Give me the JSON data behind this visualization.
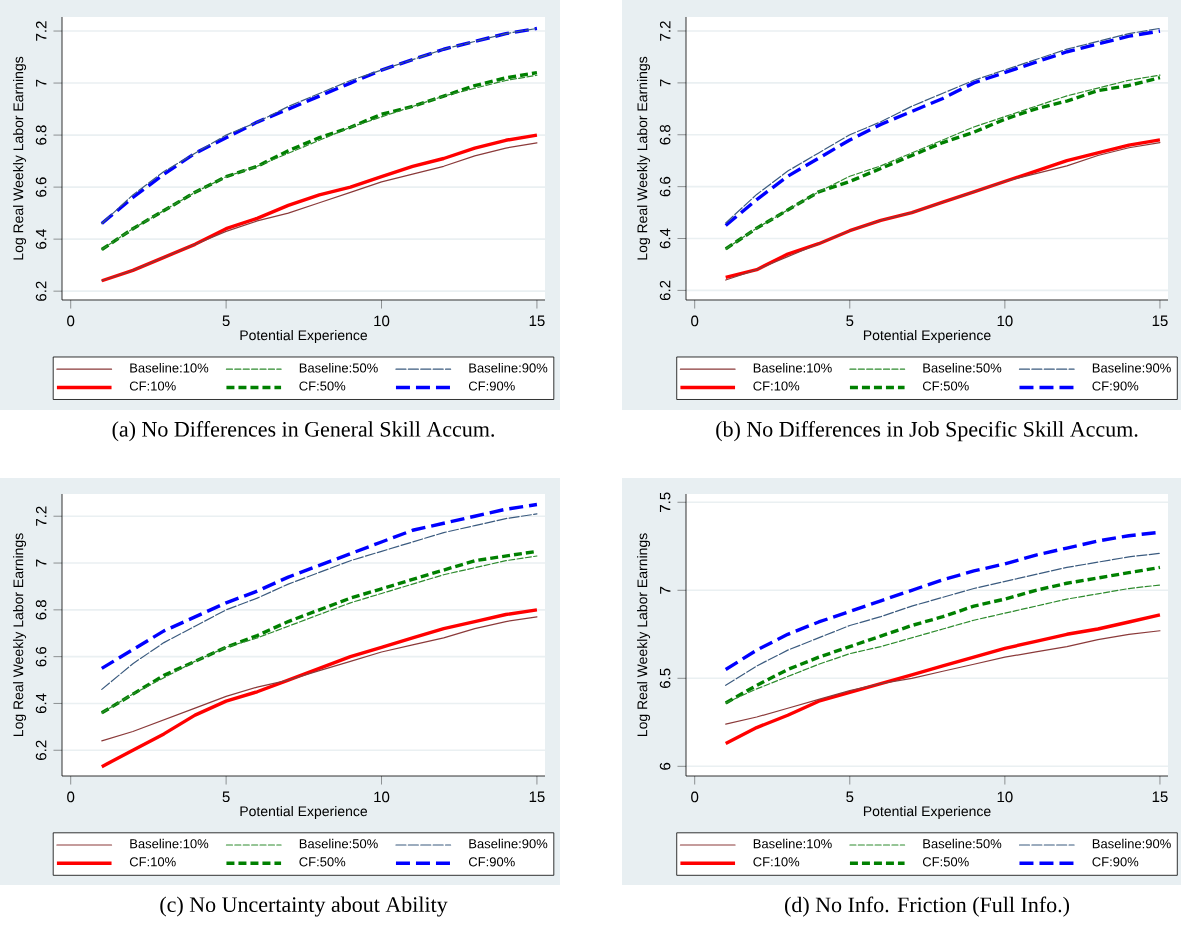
{
  "chart_data": [
    {
      "type": "line",
      "title": "(a) No Differences in General Skill Accum.",
      "xlabel": "Potential Experience",
      "ylabel": "Log Real Weekly Labor Earnings",
      "x": [
        1,
        2,
        3,
        4,
        5,
        6,
        7,
        8,
        9,
        10,
        11,
        12,
        13,
        14,
        15
      ],
      "xlim": [
        -0.28,
        15.26
      ],
      "xticks": [
        0,
        5,
        10,
        15
      ],
      "ylim": [
        6.166,
        7.254
      ],
      "yticks": [
        6.2,
        6.4,
        6.6,
        6.8,
        7,
        7.2
      ],
      "grid": "y",
      "legend": "bottom",
      "marker": "none",
      "series": [
        {
          "name": "Baseline:10%",
          "color": "#8b3a3a",
          "line_style": "solid",
          "values": [
            6.24,
            6.28,
            6.33,
            6.38,
            6.43,
            6.47,
            6.5,
            6.54,
            6.58,
            6.62,
            6.65,
            6.68,
            6.72,
            6.75,
            6.77
          ]
        },
        {
          "name": "Baseline:50%",
          "color": "#2e8b2e",
          "line_style": "dashed",
          "values": [
            6.36,
            6.44,
            6.51,
            6.58,
            6.64,
            6.68,
            6.73,
            6.78,
            6.83,
            6.87,
            6.91,
            6.95,
            6.98,
            7.01,
            7.03
          ]
        },
        {
          "name": "Baseline:90%",
          "color": "#3b5b7f",
          "line_style": "dashed",
          "values": [
            6.46,
            6.57,
            6.66,
            6.73,
            6.8,
            6.85,
            6.91,
            6.96,
            7.01,
            7.05,
            7.09,
            7.13,
            7.16,
            7.19,
            7.21
          ]
        },
        {
          "name": "CF:10%",
          "color": "#ff0000",
          "line_style": "solid",
          "values": [
            6.24,
            6.28,
            6.33,
            6.38,
            6.44,
            6.48,
            6.53,
            6.57,
            6.6,
            6.64,
            6.68,
            6.71,
            6.75,
            6.78,
            6.8
          ]
        },
        {
          "name": "CF:50%",
          "color": "#008000",
          "line_style": "dashed",
          "values": [
            6.36,
            6.44,
            6.51,
            6.58,
            6.64,
            6.68,
            6.74,
            6.79,
            6.83,
            6.88,
            6.91,
            6.95,
            6.99,
            7.02,
            7.04
          ]
        },
        {
          "name": "CF:90%",
          "color": "#0000ff",
          "line_style": "dashed",
          "values": [
            6.46,
            6.56,
            6.65,
            6.73,
            6.79,
            6.85,
            6.9,
            6.95,
            7.0,
            7.05,
            7.09,
            7.13,
            7.16,
            7.19,
            7.21
          ]
        }
      ]
    },
    {
      "type": "line",
      "title": "(b) No Differences in Job Specific Skill Accum.",
      "xlabel": "Potential Experience",
      "ylabel": "Log Real Weekly Labor Earnings",
      "x": [
        1,
        2,
        3,
        4,
        5,
        6,
        7,
        8,
        9,
        10,
        11,
        12,
        13,
        14,
        15
      ],
      "xlim": [
        -0.28,
        15.26
      ],
      "xticks": [
        0,
        5,
        10,
        15
      ],
      "ylim": [
        6.163,
        7.254
      ],
      "yticks": [
        6.2,
        6.4,
        6.6,
        6.8,
        7,
        7.2
      ],
      "grid": "y",
      "legend": "bottom",
      "marker": "none",
      "series": [
        {
          "name": "Baseline:10%",
          "color": "#8b3a3a",
          "line_style": "solid",
          "values": [
            6.24,
            6.28,
            6.33,
            6.38,
            6.43,
            6.47,
            6.5,
            6.54,
            6.58,
            6.62,
            6.65,
            6.68,
            6.72,
            6.75,
            6.77
          ]
        },
        {
          "name": "Baseline:50%",
          "color": "#2e8b2e",
          "line_style": "dashed",
          "values": [
            6.36,
            6.44,
            6.51,
            6.58,
            6.64,
            6.68,
            6.73,
            6.78,
            6.83,
            6.87,
            6.91,
            6.95,
            6.98,
            7.01,
            7.03
          ]
        },
        {
          "name": "Baseline:90%",
          "color": "#3b5b7f",
          "line_style": "dashed",
          "values": [
            6.46,
            6.57,
            6.66,
            6.73,
            6.8,
            6.85,
            6.91,
            6.96,
            7.01,
            7.05,
            7.09,
            7.13,
            7.16,
            7.19,
            7.21
          ]
        },
        {
          "name": "CF:10%",
          "color": "#ff0000",
          "line_style": "solid",
          "values": [
            6.25,
            6.28,
            6.34,
            6.38,
            6.43,
            6.47,
            6.5,
            6.54,
            6.58,
            6.62,
            6.66,
            6.7,
            6.73,
            6.76,
            6.78
          ]
        },
        {
          "name": "CF:50%",
          "color": "#008000",
          "line_style": "dashed",
          "values": [
            6.36,
            6.44,
            6.51,
            6.58,
            6.62,
            6.67,
            6.72,
            6.77,
            6.81,
            6.86,
            6.9,
            6.93,
            6.97,
            6.99,
            7.02
          ]
        },
        {
          "name": "CF:90%",
          "color": "#0000ff",
          "line_style": "dashed",
          "values": [
            6.45,
            6.55,
            6.64,
            6.71,
            6.78,
            6.84,
            6.89,
            6.94,
            7.0,
            7.04,
            7.08,
            7.12,
            7.15,
            7.18,
            7.2
          ]
        }
      ]
    },
    {
      "type": "line",
      "title": "(c) No Uncertainty about Ability",
      "xlabel": "Potential Experience",
      "ylabel": "Log Real Weekly Labor Earnings",
      "x": [
        1,
        2,
        3,
        4,
        5,
        6,
        7,
        8,
        9,
        10,
        11,
        12,
        13,
        14,
        15
      ],
      "xlim": [
        -0.28,
        15.26
      ],
      "xticks": [
        0,
        5,
        10,
        15
      ],
      "ylim": [
        6.09,
        7.295
      ],
      "yticks": [
        6.2,
        6.4,
        6.6,
        6.8,
        7,
        7.2
      ],
      "grid": "y",
      "legend": "bottom",
      "marker": "none",
      "series": [
        {
          "name": "Baseline:10%",
          "color": "#8b3a3a",
          "line_style": "solid",
          "values": [
            6.24,
            6.28,
            6.33,
            6.38,
            6.43,
            6.47,
            6.5,
            6.54,
            6.58,
            6.62,
            6.65,
            6.68,
            6.72,
            6.75,
            6.77
          ]
        },
        {
          "name": "Baseline:50%",
          "color": "#2e8b2e",
          "line_style": "dashed",
          "values": [
            6.36,
            6.44,
            6.51,
            6.58,
            6.64,
            6.68,
            6.73,
            6.78,
            6.83,
            6.87,
            6.91,
            6.95,
            6.98,
            7.01,
            7.03
          ]
        },
        {
          "name": "Baseline:90%",
          "color": "#3b5b7f",
          "line_style": "dashed",
          "values": [
            6.46,
            6.57,
            6.66,
            6.73,
            6.8,
            6.85,
            6.91,
            6.96,
            7.01,
            7.05,
            7.09,
            7.13,
            7.16,
            7.19,
            7.21
          ]
        },
        {
          "name": "CF:10%",
          "color": "#ff0000",
          "line_style": "solid",
          "values": [
            6.13,
            6.2,
            6.27,
            6.35,
            6.41,
            6.45,
            6.5,
            6.55,
            6.6,
            6.64,
            6.68,
            6.72,
            6.75,
            6.78,
            6.8
          ]
        },
        {
          "name": "CF:50%",
          "color": "#008000",
          "line_style": "dashed",
          "values": [
            6.36,
            6.44,
            6.52,
            6.58,
            6.64,
            6.69,
            6.75,
            6.8,
            6.85,
            6.89,
            6.93,
            6.97,
            7.01,
            7.03,
            7.05
          ]
        },
        {
          "name": "CF:90%",
          "color": "#0000ff",
          "line_style": "dashed",
          "values": [
            6.55,
            6.63,
            6.71,
            6.77,
            6.83,
            6.88,
            6.94,
            6.99,
            7.04,
            7.09,
            7.14,
            7.17,
            7.2,
            7.23,
            7.25
          ]
        }
      ]
    },
    {
      "type": "line",
      "title": "(d) No Info. Friction (Full Info.)",
      "xlabel": "Potential Experience",
      "ylabel": "Log Real Weekly Labor Earnings",
      "x": [
        1,
        2,
        3,
        4,
        5,
        6,
        7,
        8,
        9,
        10,
        11,
        12,
        13,
        14,
        15
      ],
      "xlim": [
        -0.28,
        15.26
      ],
      "xticks": [
        0,
        5,
        10,
        15
      ],
      "ylim": [
        5.945,
        7.547
      ],
      "yticks": [
        6,
        6.5,
        7,
        7.5
      ],
      "grid": "y",
      "legend": "bottom",
      "marker": "none",
      "series": [
        {
          "name": "Baseline:10%",
          "color": "#8b3a3a",
          "line_style": "solid",
          "values": [
            6.24,
            6.28,
            6.33,
            6.38,
            6.43,
            6.47,
            6.5,
            6.54,
            6.58,
            6.62,
            6.65,
            6.68,
            6.72,
            6.75,
            6.77
          ]
        },
        {
          "name": "Baseline:50%",
          "color": "#2e8b2e",
          "line_style": "dashed",
          "values": [
            6.36,
            6.44,
            6.51,
            6.58,
            6.64,
            6.68,
            6.73,
            6.78,
            6.83,
            6.87,
            6.91,
            6.95,
            6.98,
            7.01,
            7.03
          ]
        },
        {
          "name": "Baseline:90%",
          "color": "#3b5b7f",
          "line_style": "dashed",
          "values": [
            6.46,
            6.57,
            6.66,
            6.73,
            6.8,
            6.85,
            6.91,
            6.96,
            7.01,
            7.05,
            7.09,
            7.13,
            7.16,
            7.19,
            7.21
          ]
        },
        {
          "name": "CF:10%",
          "color": "#ff0000",
          "line_style": "solid",
          "values": [
            6.13,
            6.22,
            6.29,
            6.37,
            6.42,
            6.47,
            6.52,
            6.57,
            6.62,
            6.67,
            6.71,
            6.75,
            6.78,
            6.82,
            6.86
          ]
        },
        {
          "name": "CF:50%",
          "color": "#008000",
          "line_style": "dashed",
          "values": [
            6.36,
            6.46,
            6.55,
            6.62,
            6.68,
            6.74,
            6.8,
            6.85,
            6.91,
            6.95,
            7.0,
            7.04,
            7.07,
            7.1,
            7.13
          ]
        },
        {
          "name": "CF:90%",
          "color": "#0000ff",
          "line_style": "dashed",
          "values": [
            6.55,
            6.66,
            6.75,
            6.82,
            6.88,
            6.94,
            7.0,
            7.06,
            7.11,
            7.15,
            7.2,
            7.24,
            7.28,
            7.31,
            7.33
          ]
        }
      ]
    }
  ]
}
